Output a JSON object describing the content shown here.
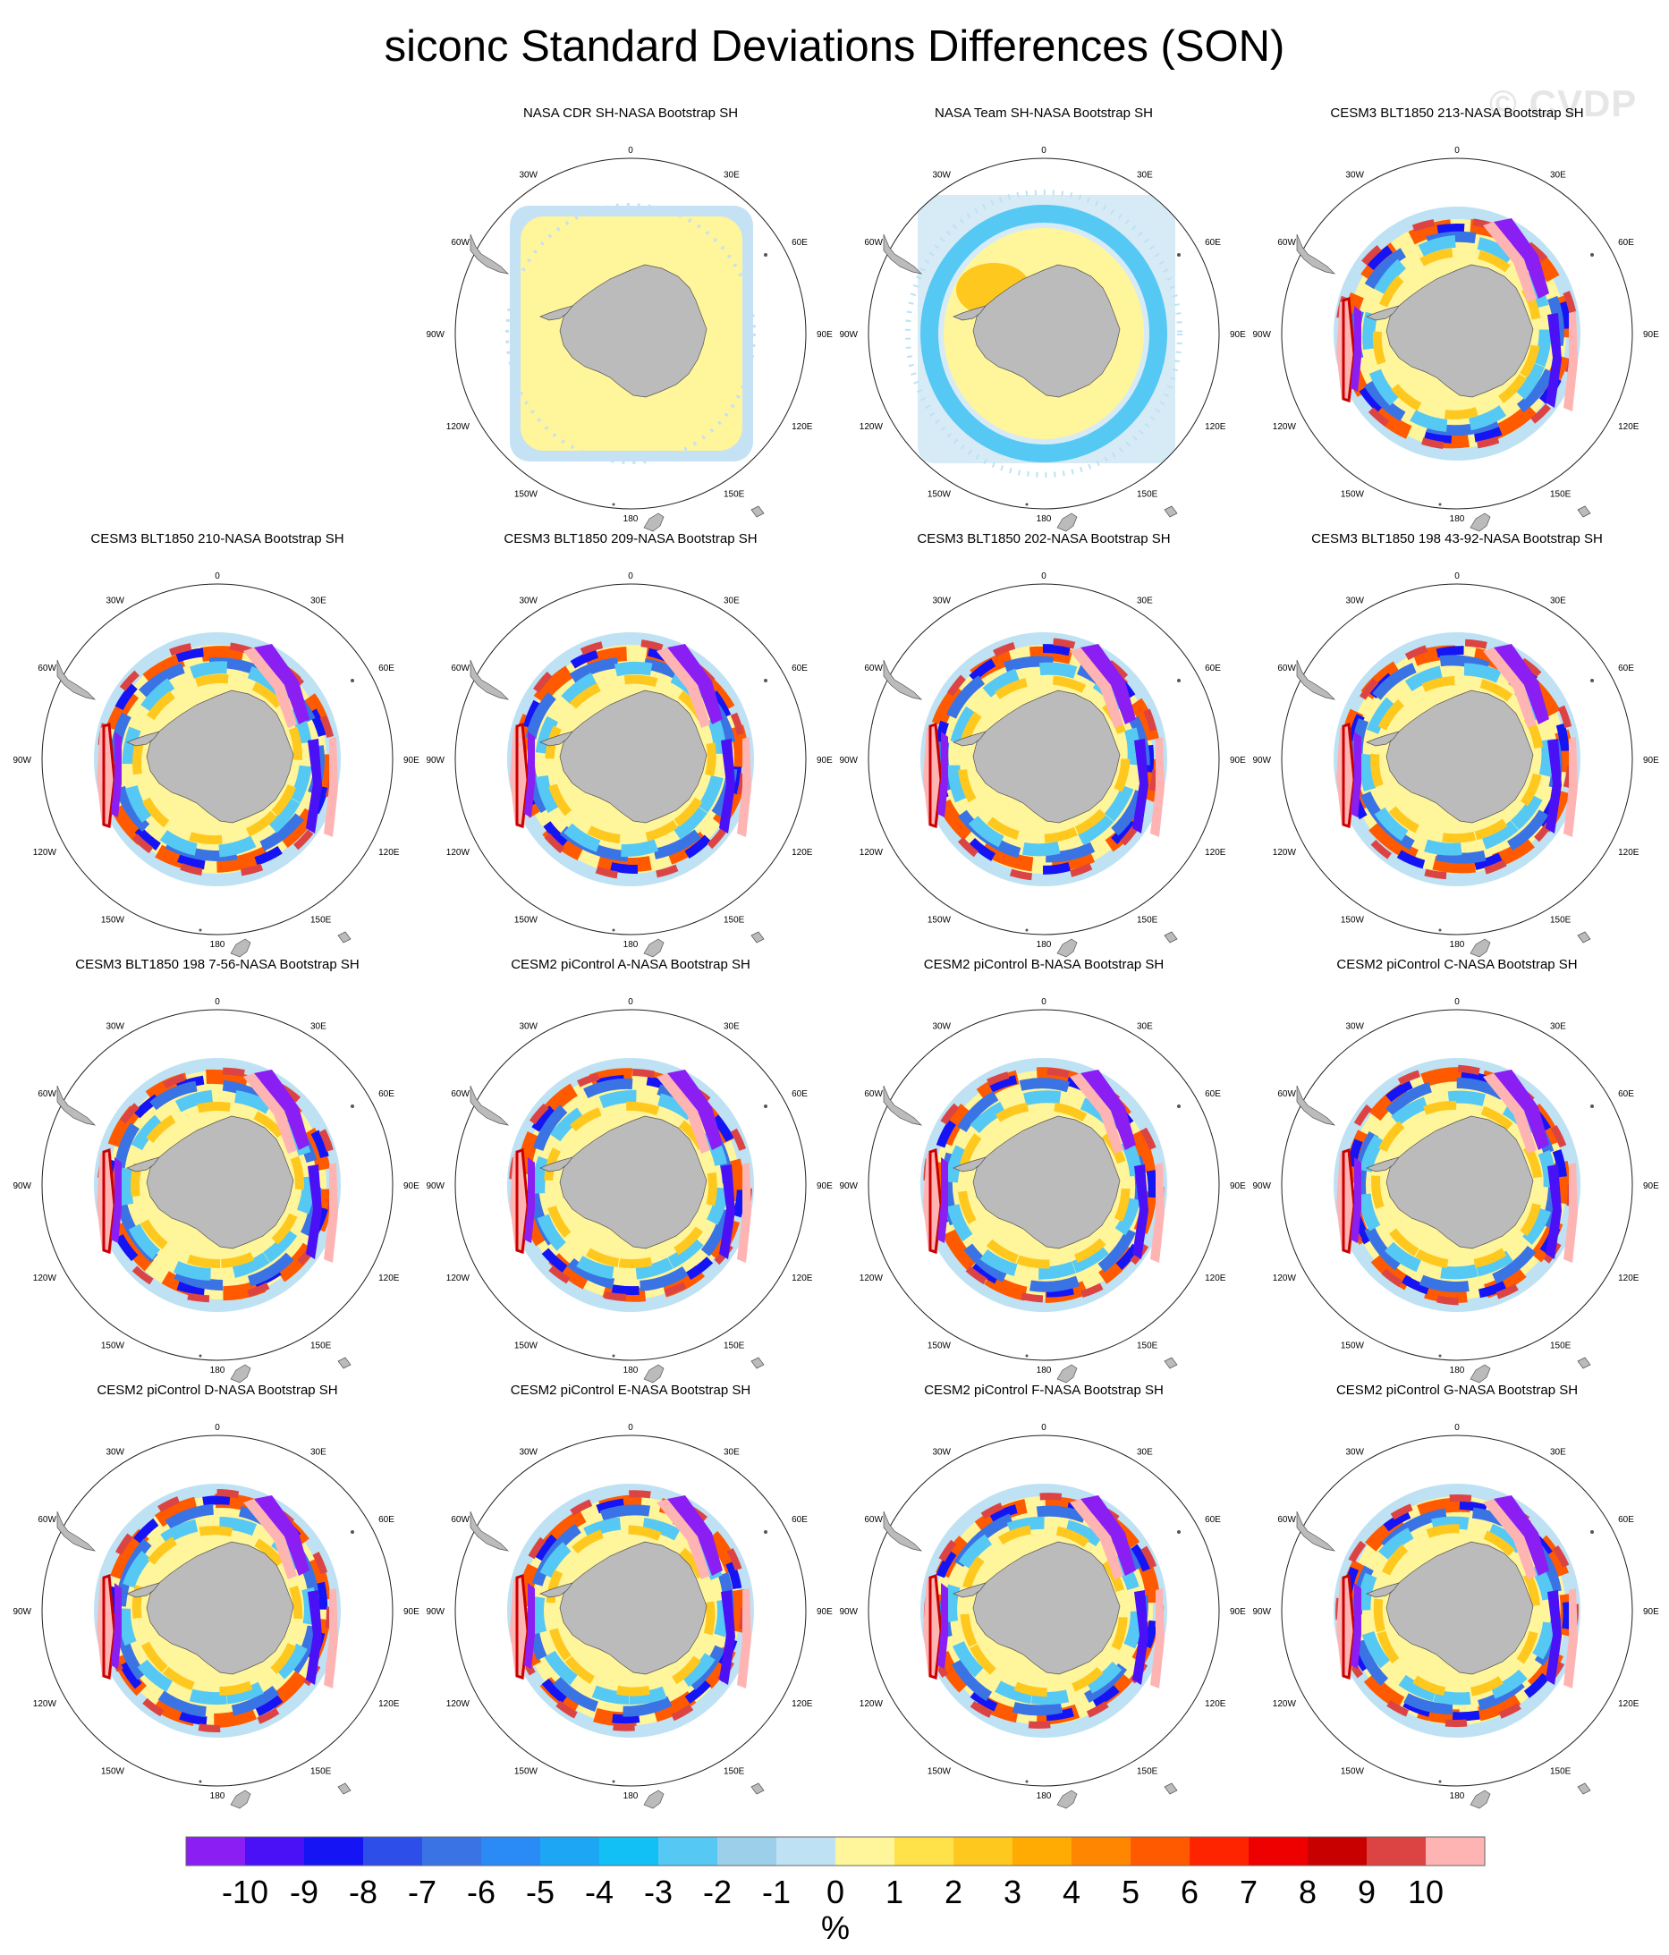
{
  "figure": {
    "title": "siconc Standard Deviations Differences (SON)",
    "watermark": "© CVDP",
    "units": "%"
  },
  "projection": {
    "type": "south-polar-stereographic",
    "lon_labels": [
      "0",
      "30E",
      "60E",
      "90E",
      "120E",
      "150E",
      "180",
      "150W",
      "120W",
      "90W",
      "60W",
      "30W"
    ]
  },
  "panels": [
    {
      "title": "",
      "kind": "empty"
    },
    {
      "title": "NASA CDR SH-NASA Bootstrap SH",
      "kind": "obs-cdr"
    },
    {
      "title": "NASA Team SH-NASA Bootstrap SH",
      "kind": "obs-team"
    },
    {
      "title": "CESM3 BLT1850 213-NASA Bootstrap SH",
      "kind": "model"
    },
    {
      "title": "CESM3 BLT1850 210-NASA Bootstrap SH",
      "kind": "model"
    },
    {
      "title": "CESM3 BLT1850 209-NASA Bootstrap SH",
      "kind": "model"
    },
    {
      "title": "CESM3 BLT1850 202-NASA Bootstrap SH",
      "kind": "model"
    },
    {
      "title": "CESM3 BLT1850 198 43-92-NASA Bootstrap SH",
      "kind": "model"
    },
    {
      "title": "CESM3 BLT1850 198 7-56-NASA Bootstrap SH",
      "kind": "model"
    },
    {
      "title": "CESM2 piControl A-NASA Bootstrap SH",
      "kind": "model"
    },
    {
      "title": "CESM2 piControl B-NASA Bootstrap SH",
      "kind": "model"
    },
    {
      "title": "CESM2 piControl C-NASA Bootstrap SH",
      "kind": "model"
    },
    {
      "title": "CESM2 piControl D-NASA Bootstrap SH",
      "kind": "model"
    },
    {
      "title": "CESM2 piControl E-NASA Bootstrap SH",
      "kind": "model"
    },
    {
      "title": "CESM2 piControl F-NASA Bootstrap SH",
      "kind": "model"
    },
    {
      "title": "CESM2 piControl G-NASA Bootstrap SH",
      "kind": "model"
    }
  ],
  "colorbar": {
    "colors": [
      "#8b1ef2",
      "#4a10f6",
      "#1414f4",
      "#2d4ee8",
      "#3a74e4",
      "#2a8bf6",
      "#1ca6f4",
      "#12c0f6",
      "#56c8f4",
      "#9ccfea",
      "#bee2f4",
      "#fff59a",
      "#ffe14a",
      "#ffc81e",
      "#ffab04",
      "#ff8600",
      "#ff5a00",
      "#ff2400",
      "#ee0000",
      "#c80000",
      "#dc4444",
      "#ffb4b4"
    ],
    "tick_labels": [
      "-10",
      "-9",
      "-8",
      "-7",
      "-6",
      "-5",
      "-4",
      "-3",
      "-2",
      "-1",
      "0",
      "1",
      "2",
      "3",
      "4",
      "5",
      "6",
      "7",
      "8",
      "9",
      "10"
    ]
  }
}
